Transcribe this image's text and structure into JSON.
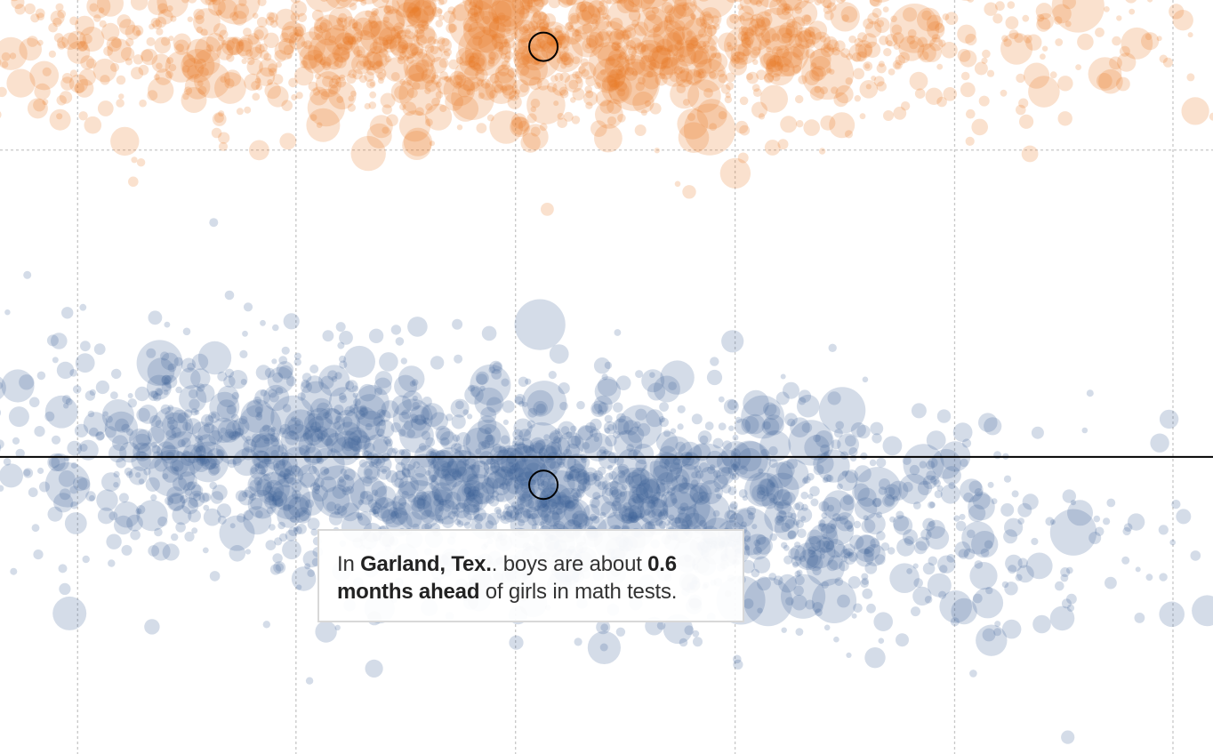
{
  "tooltip": {
    "lead": "In ",
    "place": "Garland, Tex.",
    "mid": ". boys are about ",
    "amount": "0.6",
    "amount_unit": "months ahead",
    "tail": " of girls in math tests."
  },
  "chart_data": {
    "type": "scatter",
    "title": "",
    "xlabel": "",
    "ylabel": "",
    "grid": true,
    "legend": "none",
    "series": [
      {
        "color": "#e8761e",
        "cloud": {
          "points": 1500,
          "x_center": 0.44,
          "x_spread": 0.22,
          "y_center": 0.06,
          "y_spread": 0.06
        },
        "highlight": {
          "x": 0.448,
          "y": 0.062
        }
      },
      {
        "color": "#3b5f94",
        "cloud": {
          "points": 2000,
          "x_center": 0.42,
          "x_spread": 0.22,
          "y_center": 0.64,
          "y_spread": 0.08
        },
        "highlight": {
          "x": 0.448,
          "y": 0.643
        }
      }
    ],
    "reference_line": {
      "y": 0.606
    },
    "vertical_gridlines_x": [
      0.064,
      0.244,
      0.425,
      0.606,
      0.787,
      0.967
    ],
    "horizontal_gridlines_y": [
      0.199
    ]
  }
}
